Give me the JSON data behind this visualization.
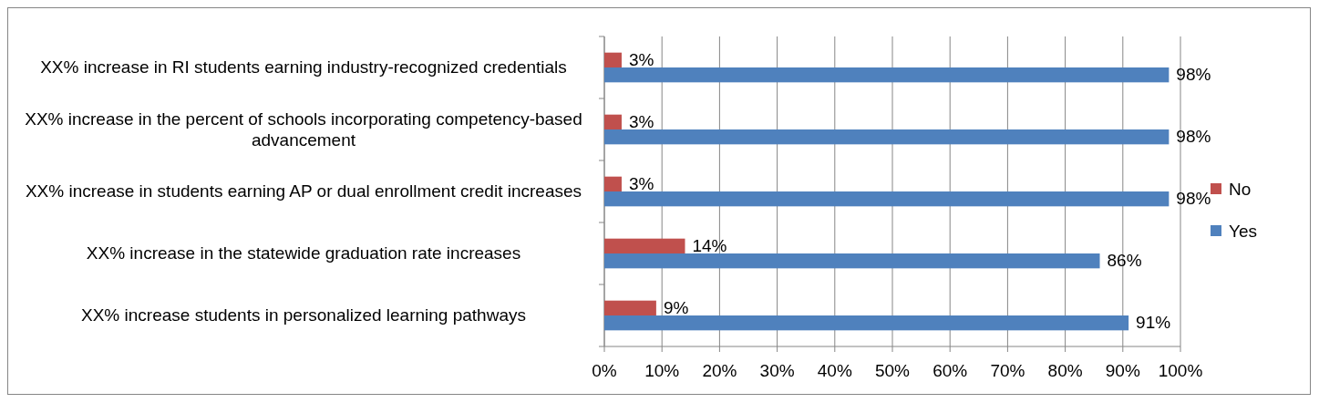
{
  "chart_data": {
    "type": "bar",
    "orientation": "horizontal",
    "categories": [
      "XX% increase in RI students earning industry-recognized credentials",
      "XX% increase in the percent of schools incorporating competency-based advancement",
      "XX% increase in students earning AP or dual enrollment credit increases",
      "XX% increase in the statewide graduation rate increases",
      "XX% increase students in personalized learning pathways"
    ],
    "series": [
      {
        "name": "No",
        "color": "#c0504d",
        "values": [
          3,
          3,
          3,
          14,
          9
        ],
        "value_labels": [
          "3%",
          "3%",
          "3%",
          "14%",
          "9%"
        ]
      },
      {
        "name": "Yes",
        "color": "#4f81bd",
        "values": [
          98,
          98,
          98,
          86,
          91
        ],
        "value_labels": [
          "98%",
          "98%",
          "98%",
          "86%",
          "91%"
        ]
      }
    ],
    "xlim": [
      0,
      100
    ],
    "xticks": [
      {
        "value": 0,
        "label": "0%"
      },
      {
        "value": 10,
        "label": "10%"
      },
      {
        "value": 20,
        "label": "20%"
      },
      {
        "value": 30,
        "label": "30%"
      },
      {
        "value": 40,
        "label": "40%"
      },
      {
        "value": 50,
        "label": "50%"
      },
      {
        "value": 60,
        "label": "60%"
      },
      {
        "value": 70,
        "label": "70%"
      },
      {
        "value": 80,
        "label": "80%"
      },
      {
        "value": 90,
        "label": "90%"
      },
      {
        "value": 100,
        "label": "100%"
      }
    ],
    "grid": "x",
    "legend": "right"
  }
}
